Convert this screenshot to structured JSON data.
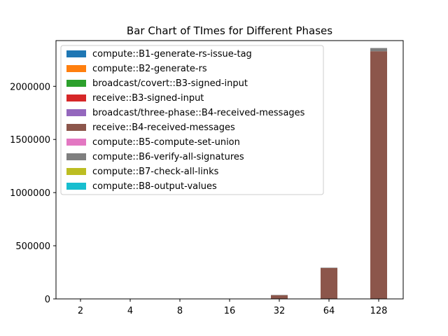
{
  "chart_data": {
    "type": "bar",
    "stacked": true,
    "title": "Bar Chart of TImes for Different Phases",
    "xlabel": "",
    "ylabel": "",
    "categories": [
      "2",
      "4",
      "8",
      "16",
      "32",
      "64",
      "128"
    ],
    "ylim": [
      0,
      2430000
    ],
    "yticks": [
      0,
      500000,
      1000000,
      1500000,
      2000000
    ],
    "ytick_labels": [
      "0",
      "500000",
      "1000000",
      "1500000",
      "2000000"
    ],
    "grid": false,
    "legend_position": "top-left",
    "series": [
      {
        "name": "compute::B1-generate-rs-issue-tag",
        "color": "#1f77b4",
        "values": [
          0,
          0,
          0,
          0,
          0,
          0,
          0
        ]
      },
      {
        "name": "compute::B2-generate-rs",
        "color": "#ff7f0e",
        "values": [
          0,
          0,
          0,
          0,
          0,
          0,
          0
        ]
      },
      {
        "name": "broadcast/covert::B3-signed-input",
        "color": "#2ca02c",
        "values": [
          0,
          0,
          0,
          0,
          0,
          0,
          0
        ]
      },
      {
        "name": "receive::B3-signed-input",
        "color": "#d62728",
        "values": [
          0,
          0,
          0,
          0,
          0,
          0,
          0
        ]
      },
      {
        "name": "broadcast/three-phase::B4-received-messages",
        "color": "#9467bd",
        "values": [
          0,
          0,
          0,
          0,
          0,
          0,
          0
        ]
      },
      {
        "name": "receive::B4-received-messages",
        "color": "#8c564b",
        "values": [
          0,
          0,
          0,
          0,
          36000,
          290000,
          2330000
        ]
      },
      {
        "name": "compute::B5-compute-set-union",
        "color": "#e377c2",
        "values": [
          0,
          0,
          0,
          0,
          0,
          0,
          0
        ]
      },
      {
        "name": "compute::B6-verify-all-signatures",
        "color": "#7f7f7f",
        "values": [
          0,
          0,
          0,
          0,
          1000,
          4000,
          30000
        ]
      },
      {
        "name": "compute::B7-check-all-links",
        "color": "#bcbd22",
        "values": [
          0,
          0,
          0,
          0,
          0,
          0,
          0
        ]
      },
      {
        "name": "compute::B8-output-values",
        "color": "#17becf",
        "values": [
          0,
          0,
          0,
          0,
          0,
          0,
          0
        ]
      }
    ]
  }
}
